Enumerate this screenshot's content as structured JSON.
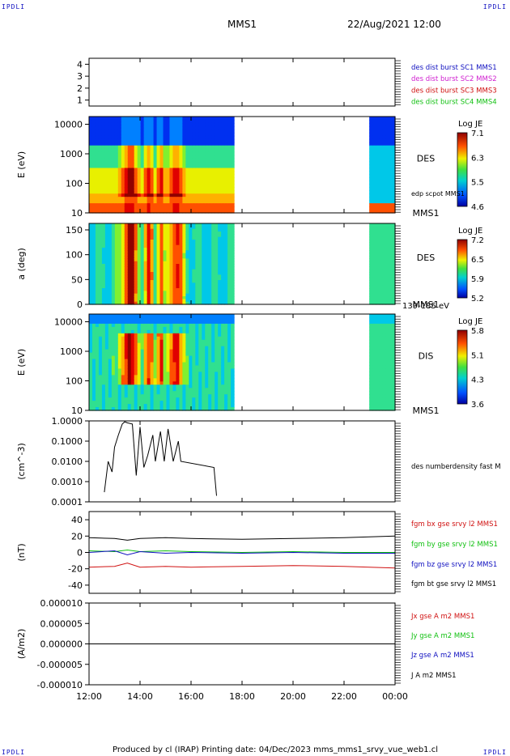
{
  "corner_tl": "IPDLI",
  "corner_tr": "IPDLI",
  "corner_bl": "IPDLI",
  "corner_br": "IPDLI",
  "header": {
    "mission": "MMS1",
    "date": "22/Aug/2021 12:00"
  },
  "footer": "Produced by cl (IRAP)   Printing date: 04/Dec/2023   mms_mms1_srvy_vue_web1.cl",
  "colors": {
    "c1": "#1010c0",
    "c2": "#d020d0",
    "c3": "#d01010",
    "c4": "#10c010",
    "black": "#000000"
  },
  "chart_data": [
    {
      "type": "line",
      "title": "",
      "ylim": [
        0.5,
        4.5
      ],
      "yticks": [
        "1",
        "2",
        "3",
        "4"
      ],
      "legend": [
        {
          "label": "des dist burst SC1 MMS1",
          "color": "#1010c0"
        },
        {
          "label": "des dist burst SC2 MMS2",
          "color": "#d020d0"
        },
        {
          "label": "des dist burst SC3 MMS3",
          "color": "#d01010"
        },
        {
          "label": "des dist burst SC4 MMS4",
          "color": "#10c010"
        }
      ]
    },
    {
      "type": "heatmap",
      "ylabel": "E (eV)",
      "yticks": [
        "10",
        "100",
        "1000",
        "10000"
      ],
      "label": "DES",
      "sublabel": "MMS1",
      "overlay": "edp scpot MMS1",
      "colorbar": {
        "title": "Log JE",
        "ticks": [
          "7.1",
          "6.3",
          "5.5",
          "4.6"
        ]
      }
    },
    {
      "type": "heatmap",
      "ylabel": "a (deg)",
      "yticks": [
        "0",
        "50",
        "100",
        "150"
      ],
      "label": "DES",
      "sublabel": "MMS1",
      "energy_range": "139-185 eV",
      "colorbar": {
        "title": "Log JE",
        "ticks": [
          "7.2",
          "6.5",
          "5.9",
          "5.2"
        ]
      }
    },
    {
      "type": "heatmap",
      "ylabel": "E (eV)",
      "yticks": [
        "10",
        "100",
        "1000",
        "10000"
      ],
      "label": "DIS",
      "sublabel": "MMS1",
      "colorbar": {
        "title": "Log JE",
        "ticks": [
          "5.8",
          "5.1",
          "4.3",
          "3.6"
        ]
      }
    },
    {
      "type": "line",
      "ylabel": "(cm^-3)",
      "yscale": "log",
      "yticks": [
        "0.0001",
        "0.0010",
        "0.0100",
        "0.1000",
        "1.0000"
      ],
      "series": [
        {
          "name": "des numberdensity fast M",
          "color": "#000000",
          "x": [
            12.6,
            12.75,
            12.9,
            13.0,
            13.15,
            13.3,
            13.4,
            13.5,
            13.7,
            13.85,
            14.0,
            14.15,
            14.3,
            14.5,
            14.6,
            14.8,
            14.95,
            15.1,
            15.3,
            15.5,
            15.6,
            16.9,
            17.0
          ],
          "y": [
            0.0003,
            0.01,
            0.003,
            0.05,
            0.2,
            0.7,
            0.9,
            0.8,
            0.7,
            0.002,
            0.5,
            0.005,
            0.02,
            0.2,
            0.01,
            0.3,
            0.01,
            0.4,
            0.01,
            0.1,
            0.01,
            0.005,
            0.0002
          ]
        }
      ]
    },
    {
      "type": "line",
      "ylabel": "(nT)",
      "ylim": [
        -50,
        50
      ],
      "yticks": [
        "-40",
        "-20",
        "0",
        "20",
        "40"
      ],
      "x_range": [
        12,
        24
      ],
      "series": [
        {
          "name": "fgm bx gse srvy l2 MMS1",
          "color": "#d01010",
          "x": [
            12,
            13,
            13.5,
            14,
            15,
            16,
            18,
            20,
            22,
            24
          ],
          "y": [
            -18,
            -17,
            -13,
            -18,
            -17,
            -18,
            -17,
            -16,
            -17,
            -19
          ]
        },
        {
          "name": "fgm by gse srvy l2 MMS1",
          "color": "#10c010",
          "x": [
            12,
            13,
            13.5,
            14,
            15,
            16,
            18,
            20,
            22,
            24
          ],
          "y": [
            2,
            1,
            3,
            1,
            2,
            1,
            0,
            1,
            0,
            0
          ]
        },
        {
          "name": "fgm bz gse srvy l2 MMS1",
          "color": "#1010c0",
          "x": [
            12,
            13,
            13.5,
            14,
            15,
            16,
            18,
            20,
            22,
            24
          ],
          "y": [
            0,
            2,
            -3,
            1,
            -1,
            0,
            -1,
            0,
            -1,
            -1
          ]
        },
        {
          "name": "fgm bt gse srvy l2 MMS1",
          "color": "#000000",
          "x": [
            12,
            13,
            13.5,
            14,
            15,
            16,
            18,
            20,
            22,
            24
          ],
          "y": [
            18,
            17,
            15,
            17,
            18,
            17,
            16,
            17,
            18,
            20
          ]
        }
      ]
    },
    {
      "type": "line",
      "ylabel": "(A/m2)",
      "ylim": [
        -1e-05,
        1e-05
      ],
      "yticks": [
        "-0.000010",
        "-0.000005",
        "0.000000",
        "0.000005",
        "0.000010"
      ],
      "series": [
        {
          "name": "Jx gse A m2 MMS1",
          "color": "#d01010"
        },
        {
          "name": "Jy gse A m2 MMS1",
          "color": "#10c010"
        },
        {
          "name": "Jz gse A m2 MMS1",
          "color": "#1010c0"
        },
        {
          "name": "J A m2 MMS1",
          "color": "#000000"
        }
      ]
    }
  ],
  "x_axis": {
    "ticks": [
      "12:00",
      "14:00",
      "16:00",
      "18:00",
      "20:00",
      "22:00",
      "00:00"
    ],
    "range": [
      12,
      24
    ]
  }
}
